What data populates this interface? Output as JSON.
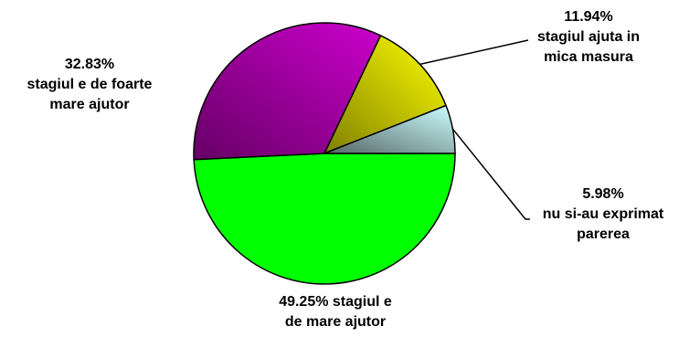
{
  "chart_data": {
    "type": "pie",
    "slices": [
      {
        "label": "stagiul e de mare ajutor",
        "value": 49.25,
        "color": "#00ff00",
        "lines": [
          "49.25% stagiul e",
          "de mare ajutor"
        ]
      },
      {
        "label": "stagiul e de foarte mare ajutor",
        "value": 32.83,
        "color": "#cc00cc",
        "lines": [
          "32.83%",
          "stagiul e de foarte",
          "mare ajutor"
        ]
      },
      {
        "label": "stagiul ajuta in mica masura",
        "value": 11.94,
        "color": "#ffff00",
        "lines": [
          "11.94%",
          "stagiul ajuta in",
          "mica masura"
        ]
      },
      {
        "label": "nu si-au exprimat parerea",
        "value": 5.98,
        "color": "#ccffff",
        "lines": [
          "5.98%",
          "nu si-au exprimat",
          "parerea"
        ]
      }
    ]
  }
}
